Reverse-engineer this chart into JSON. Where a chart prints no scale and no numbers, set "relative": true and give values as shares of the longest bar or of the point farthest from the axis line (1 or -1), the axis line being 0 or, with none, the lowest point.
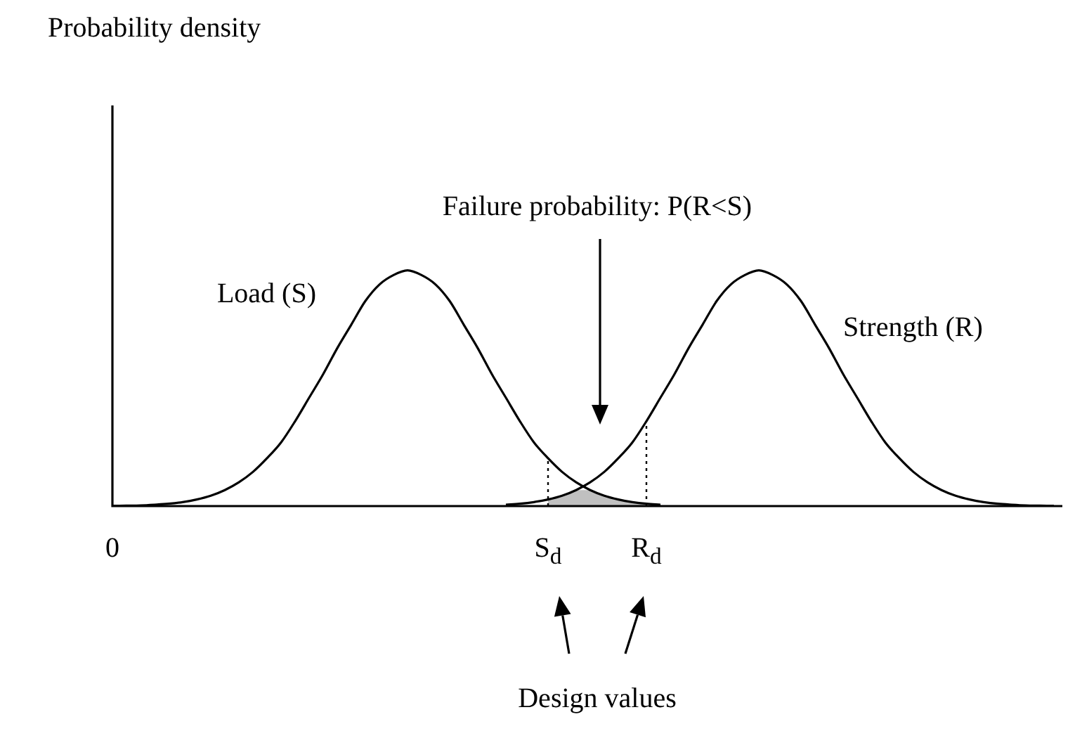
{
  "chart_data": {
    "type": "line",
    "relative": true,
    "marker": "none",
    "annotations": [
      "Probability density",
      "Failure probability: P(R<S)",
      "Design values"
    ],
    "ref_lines": [
      {
        "axis": "x",
        "value": "S$_{d}$",
        "line_style": "dotted"
      },
      {
        "axis": "x",
        "value": "R$_{d}$",
        "line_style": "dotted"
      }
    ],
    "categories": [
      "0",
      null,
      null,
      null,
      null,
      null,
      null,
      null,
      null,
      null,
      null,
      null,
      null,
      null,
      null,
      null,
      null,
      null,
      null,
      null,
      null,
      null,
      null,
      null,
      null,
      null,
      null,
      null,
      null,
      null,
      null,
      "S$_{d}$",
      null,
      null,
      null,
      null,
      null,
      null,
      "R$_{d}$",
      null,
      null,
      null,
      null,
      null,
      null,
      null,
      null,
      null,
      null,
      null,
      null,
      null,
      null,
      null,
      null,
      null,
      null,
      null,
      null,
      null,
      null,
      null,
      null,
      null,
      null,
      null,
      null,
      null
    ],
    "series": [
      {
        "type": "area",
        "color": "#c0c0c0",
        "values": [
          null,
          null,
          null,
          null,
          null,
          null,
          null,
          null,
          null,
          null,
          null,
          null,
          null,
          null,
          null,
          null,
          null,
          null,
          null,
          null,
          null,
          null,
          null,
          null,
          null,
          null,
          null,
          null,
          null,
          null,
          null,
          0.028,
          0.044,
          0.068,
          0.068,
          0.044,
          0.028,
          0.017,
          0.01,
          null,
          null,
          null,
          null,
          null,
          null,
          null,
          null,
          null,
          null,
          null,
          null,
          null,
          null,
          null,
          null,
          null,
          null,
          null,
          null,
          null,
          null,
          null,
          null,
          null,
          null,
          null,
          null,
          null
        ]
      },
      {
        "name": "Load (S)",
        "color": "#000000",
        "values": [
          0.001,
          0.002,
          0.003,
          0.006,
          0.01,
          0.017,
          0.028,
          0.044,
          0.068,
          0.101,
          0.145,
          0.203,
          0.27,
          0.36,
          0.46,
          0.56,
          0.67,
          0.77,
          0.87,
          0.94,
          0.98,
          1,
          0.98,
          0.94,
          0.87,
          0.77,
          0.67,
          0.56,
          0.46,
          0.36,
          0.27,
          0.203,
          0.145,
          0.101,
          0.068,
          0.044,
          0.028,
          0.017,
          0.01,
          0.006,
          null,
          null,
          null,
          null,
          null,
          null,
          null,
          null,
          null,
          null,
          null,
          null,
          null,
          null,
          null,
          null,
          null,
          null,
          null,
          null,
          null,
          null,
          null,
          null,
          null,
          null,
          null,
          null
        ]
      },
      {
        "name": "Strength (R)",
        "color": "#000000",
        "values": [
          null,
          null,
          null,
          null,
          null,
          null,
          null,
          null,
          null,
          null,
          null,
          null,
          null,
          null,
          null,
          null,
          null,
          null,
          null,
          null,
          null,
          null,
          null,
          null,
          null,
          null,
          null,
          null,
          0.006,
          0.01,
          0.017,
          0.028,
          0.044,
          0.068,
          0.101,
          0.145,
          0.203,
          0.27,
          0.36,
          0.46,
          0.56,
          0.67,
          0.77,
          0.87,
          0.94,
          0.98,
          1,
          0.98,
          0.94,
          0.87,
          0.77,
          0.67,
          0.56,
          0.46,
          0.36,
          0.27,
          0.203,
          0.145,
          0.101,
          0.068,
          0.044,
          0.028,
          0.017,
          0.01,
          0.006,
          0.003,
          0.002,
          0.001
        ]
      }
    ]
  }
}
